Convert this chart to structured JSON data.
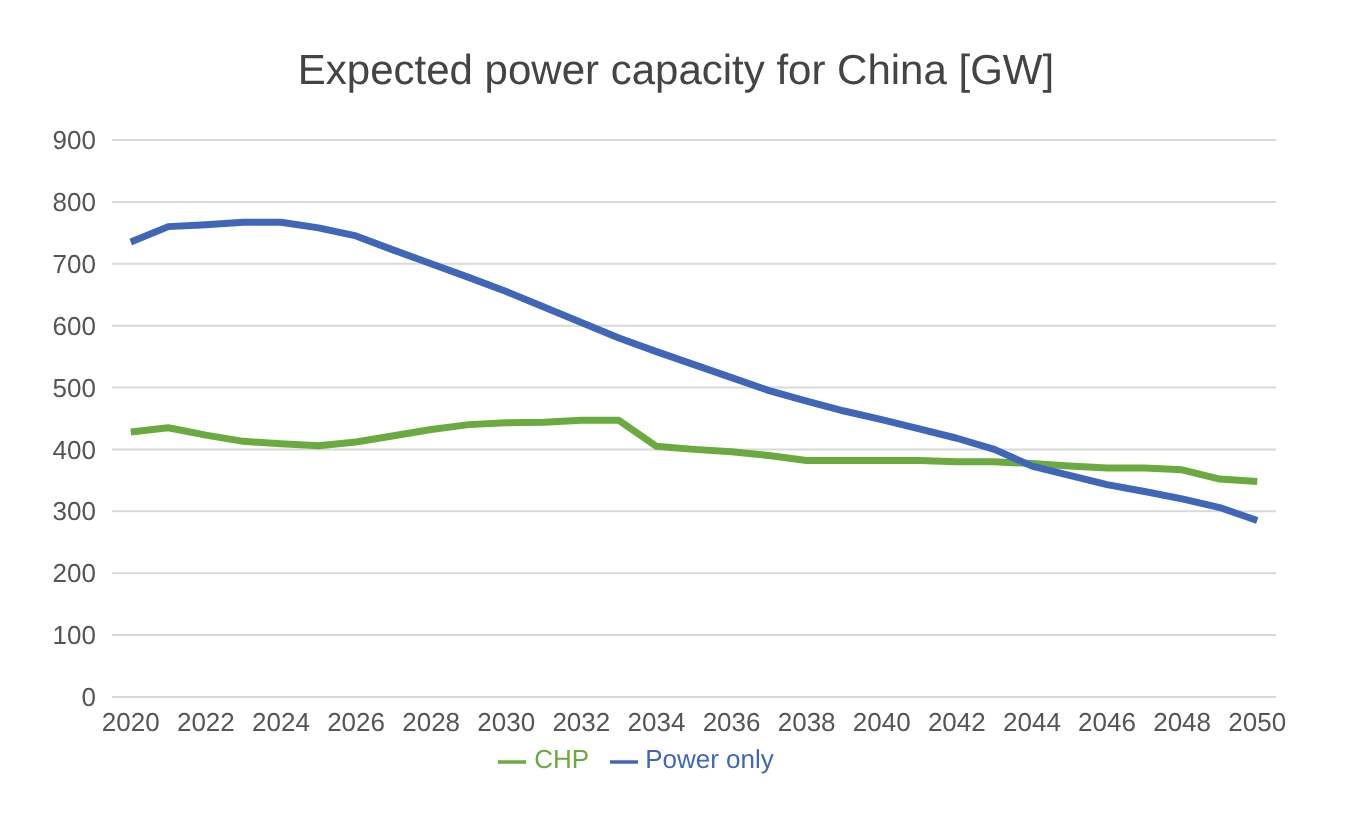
{
  "chart_data": {
    "type": "line",
    "title": "Expected power capacity for China [GW]",
    "x": [
      2020,
      2021,
      2022,
      2023,
      2024,
      2025,
      2026,
      2027,
      2028,
      2029,
      2030,
      2031,
      2032,
      2033,
      2034,
      2035,
      2036,
      2037,
      2038,
      2039,
      2040,
      2041,
      2042,
      2043,
      2044,
      2045,
      2046,
      2047,
      2048,
      2049,
      2050
    ],
    "series": [
      {
        "name": "CHP",
        "color": "#6aaa3f",
        "values": [
          428,
          435,
          423,
          413,
          409,
          406,
          412,
          422,
          432,
          440,
          443,
          444,
          447,
          447,
          405,
          400,
          396,
          390,
          382,
          382,
          382,
          382,
          380,
          380,
          377,
          373,
          370,
          370,
          367,
          352,
          348
        ]
      },
      {
        "name": "Power only",
        "color": "#4066b8",
        "values": [
          735,
          760,
          763,
          767,
          767,
          758,
          745,
          722,
          700,
          678,
          655,
          630,
          605,
          580,
          558,
          537,
          516,
          495,
          478,
          462,
          448,
          433,
          418,
          400,
          373,
          358,
          343,
          332,
          320,
          306,
          285
        ]
      }
    ],
    "xlim": [
      2019.5,
      2050.5
    ],
    "xticks": [
      2020,
      2022,
      2024,
      2026,
      2028,
      2030,
      2032,
      2034,
      2036,
      2038,
      2040,
      2042,
      2044,
      2046,
      2048,
      2050
    ],
    "ylim": [
      0,
      900
    ],
    "yticks": [
      0,
      100,
      200,
      300,
      400,
      500,
      600,
      700,
      800,
      900
    ],
    "grid": "y",
    "legend": "bottom",
    "marker": "none",
    "line_style": "solid"
  }
}
